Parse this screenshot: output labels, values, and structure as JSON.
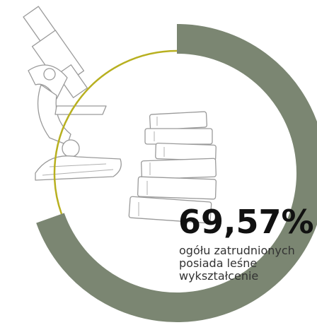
{
  "chart_data": {
    "type": "donut",
    "values": [
      69.57
    ],
    "value_labels": [
      "69,57%"
    ],
    "max": 100,
    "color": "#7b8672",
    "remainder_color": "#b8b020",
    "description": [
      "ogółu zatrudnionych",
      "posiada leśne",
      "wykształcenie"
    ]
  }
}
